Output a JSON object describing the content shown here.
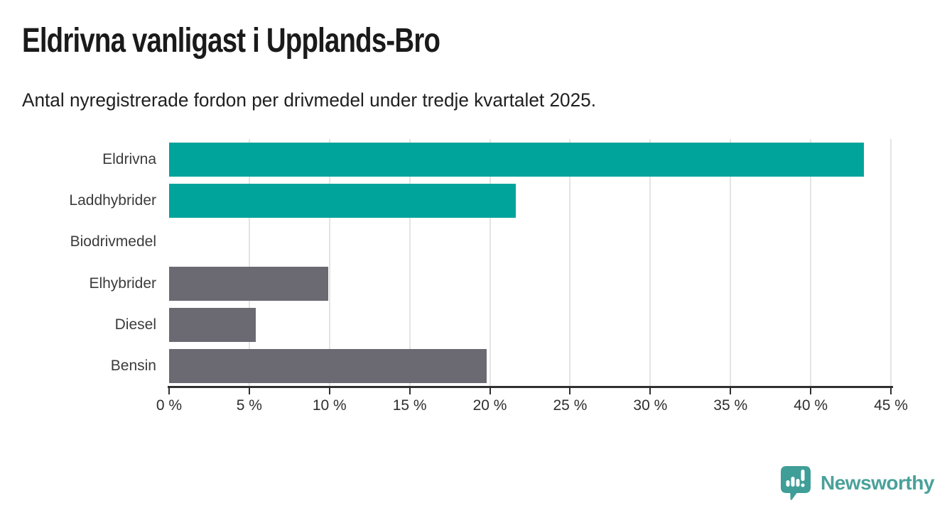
{
  "page": {
    "title": "Eldrivna vanligast i Upplands-Bro",
    "subtitle": "Antal nyregistrerade fordon per drivmedel under tredje kvartalet 2025."
  },
  "chart_data": {
    "type": "bar",
    "orientation": "horizontal",
    "title": "Eldrivna vanligast i Upplands-Bro",
    "subtitle": "Antal nyregistrerade fordon per drivmedel under tredje kvartalet 2025.",
    "categories": [
      "Eldrivna",
      "Laddhybrider",
      "Biodrivmedel",
      "Elhybrider",
      "Diesel",
      "Bensin"
    ],
    "values": [
      43.3,
      21.6,
      0,
      9.9,
      5.4,
      19.8
    ],
    "unit": "%",
    "xlabel": "",
    "ylabel": "",
    "xlim": [
      0,
      45
    ],
    "tick_step": 5,
    "x_ticks": [
      "0 %",
      "5 %",
      "10 %",
      "15 %",
      "20 %",
      "25 %",
      "30 %",
      "35 %",
      "40 %",
      "45 %"
    ],
    "grid": true,
    "legend": false,
    "colors": {
      "highlight": "#00a49b",
      "default": "#6b6a72",
      "gridline": "#e4e4e4",
      "axis": "#303030"
    },
    "bar_colors": [
      "#00a49b",
      "#00a49b",
      "#6b6a72",
      "#6b6a72",
      "#6b6a72",
      "#6b6a72"
    ]
  },
  "footer": {
    "brand": "Newsworthy",
    "brand_color": "#4aa19a",
    "logo_color": "#3f9e97",
    "logo_icon": "newsworthy-pin-barchart-icon"
  }
}
